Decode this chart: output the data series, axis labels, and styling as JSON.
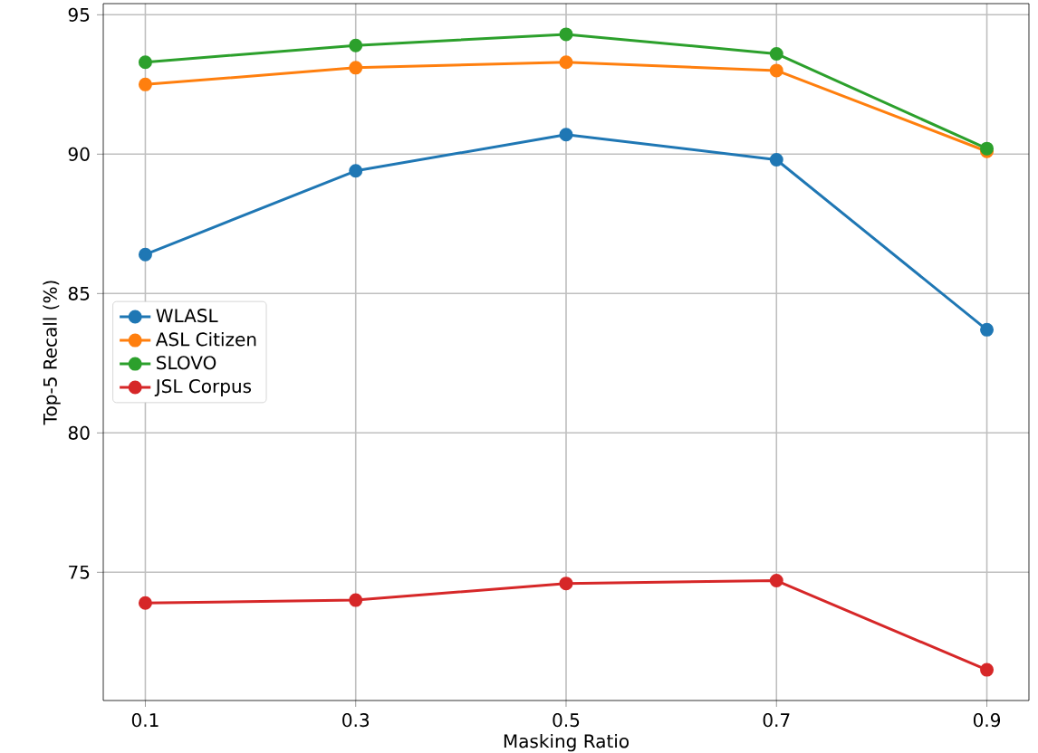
{
  "chart_data": {
    "type": "line",
    "xlabel": "Masking Ratio",
    "ylabel": "Top-5 Recall (%)",
    "x": [
      0.1,
      0.3,
      0.5,
      0.7,
      0.9
    ],
    "series": [
      {
        "name": "WLASL",
        "color": "#1f77b4",
        "values": [
          86.4,
          89.4,
          90.7,
          89.8,
          83.7
        ]
      },
      {
        "name": "ASL Citizen",
        "color": "#ff7f0e",
        "values": [
          92.5,
          93.1,
          93.3,
          93.0,
          90.1
        ]
      },
      {
        "name": "SLOVO",
        "color": "#2ca02c",
        "values": [
          93.3,
          93.9,
          94.3,
          93.6,
          90.2
        ]
      },
      {
        "name": "JSL Corpus",
        "color": "#d62728",
        "values": [
          73.9,
          74.0,
          74.6,
          74.7,
          71.5
        ]
      }
    ],
    "xlim": [
      0.06,
      0.94
    ],
    "ylim": [
      70.4,
      95.4
    ],
    "xticks": [
      0.1,
      0.3,
      0.5,
      0.7,
      0.9
    ],
    "yticks": [
      75,
      80,
      85,
      90,
      95
    ],
    "grid": true,
    "legend": "left",
    "marker": "circle",
    "line_style": "solid"
  }
}
